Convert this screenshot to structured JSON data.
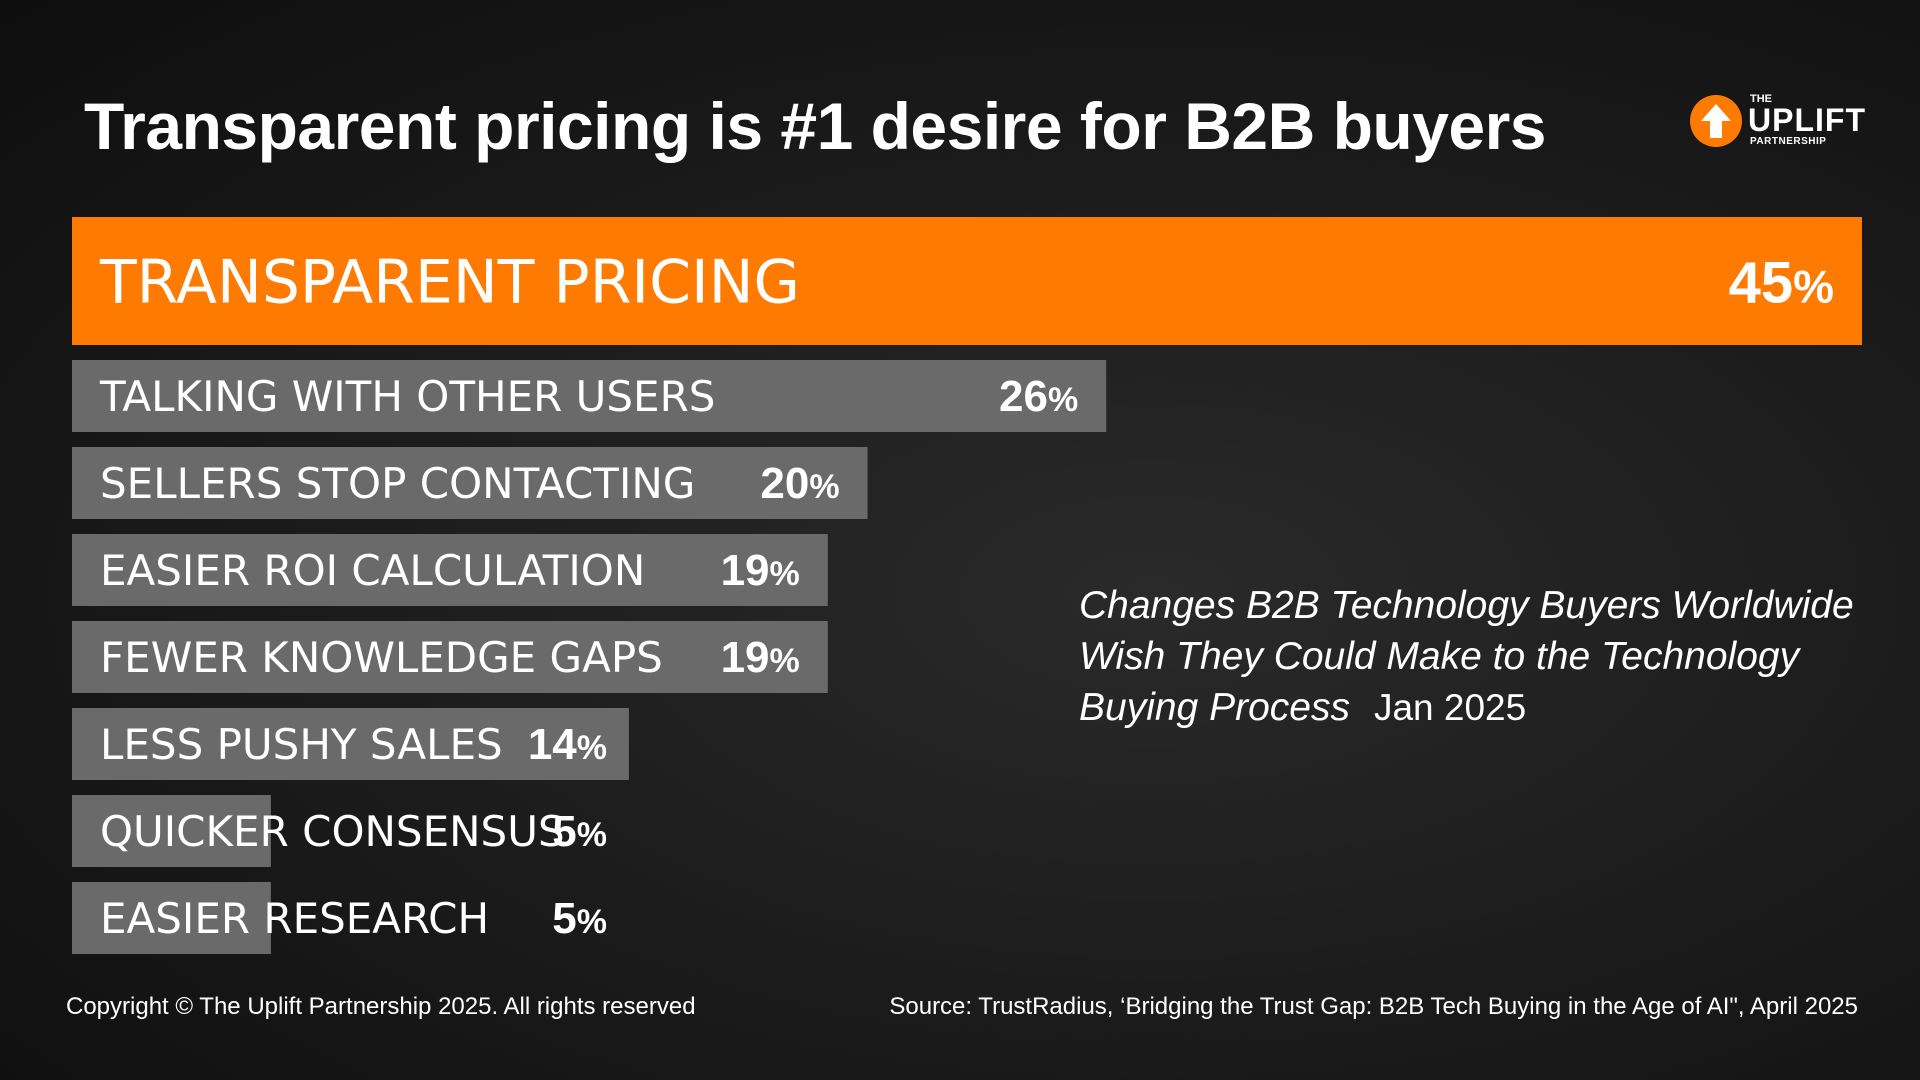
{
  "header": {
    "title": "Transparent pricing is #1 desire for B2B buyers"
  },
  "logo": {
    "the": "THE",
    "name": "UPLIFT",
    "sub": "PARTNERSHIP",
    "icon": "up-arrow-icon"
  },
  "colors": {
    "highlight": "#ff7a00",
    "bar": "#6a6a6a",
    "background": "#1a1a1a"
  },
  "chart_data": {
    "type": "bar",
    "orientation": "horizontal",
    "title": "",
    "categories": [
      "TRANSPARENT PRICING",
      "TALKING WITH OTHER USERS",
      "SELLERS STOP CONTACTING",
      "EASIER ROI CALCULATION",
      "FEWER KNOWLEDGE GAPS",
      "LESS PUSHY SALES",
      "QUICKER CONSENSUS",
      "EASIER RESEARCH"
    ],
    "values": [
      45,
      26,
      20,
      19,
      19,
      14,
      5,
      5
    ],
    "value_suffix": "%",
    "highlighted_index": 0,
    "xlim": [
      0,
      45
    ]
  },
  "note": {
    "text": "Changes B2B Technology Buyers Worldwide Wish They Could Make to the Technology Buying Process",
    "date": "Jan 2025"
  },
  "footer": {
    "copyright": "Copyright © The Uplift Partnership 2025. All rights reserved",
    "source": "Source: TrustRadius, ‘Bridging the Trust Gap: B2B Tech Buying in the Age of AI\", April 2025"
  }
}
